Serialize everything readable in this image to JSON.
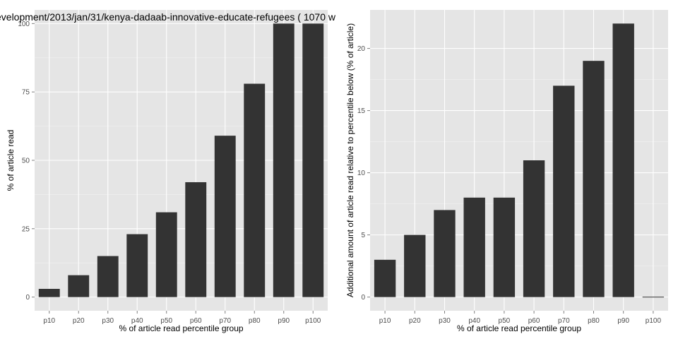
{
  "colors": {
    "panel_background": "#e5e5e5",
    "grid_major": "#ffffff",
    "grid_minor": "#f2f2f2",
    "bar_fill": "#333333",
    "tick_text": "#4d4d4d"
  },
  "chart_data": [
    {
      "type": "bar",
      "title": "evelopment/2013/jan/31/kenya-dadaab-innovative-educate-refugees ( 1070 w",
      "xlabel": "% of article read percentile group",
      "ylabel": "% of article read",
      "categories": [
        "p10",
        "p20",
        "p30",
        "p40",
        "p50",
        "p60",
        "p70",
        "p80",
        "p90",
        "p100"
      ],
      "values": [
        3,
        8,
        15,
        23,
        31,
        42,
        59,
        78,
        100,
        100
      ],
      "ylim": [
        -5,
        105
      ],
      "yticks": [
        0,
        25,
        50,
        75,
        100
      ],
      "ytick_labels": [
        "0",
        "25",
        "50",
        "75",
        "100"
      ],
      "grid": true,
      "legend": "none"
    },
    {
      "type": "bar",
      "title": "",
      "xlabel": "% of article read percentile group",
      "ylabel": "Additional amount of article read relative to percentile below (% of article)",
      "categories": [
        "p10",
        "p20",
        "p30",
        "p40",
        "p50",
        "p60",
        "p70",
        "p80",
        "p90",
        "p100"
      ],
      "values": [
        3,
        5,
        7,
        8,
        8,
        11,
        17,
        19,
        22,
        0
      ],
      "ylim": [
        -1.1,
        23.1
      ],
      "yticks": [
        0,
        5,
        10,
        15,
        20
      ],
      "ytick_labels": [
        "0",
        "5",
        "10",
        "15",
        "20"
      ],
      "grid": true,
      "legend": "none"
    }
  ]
}
